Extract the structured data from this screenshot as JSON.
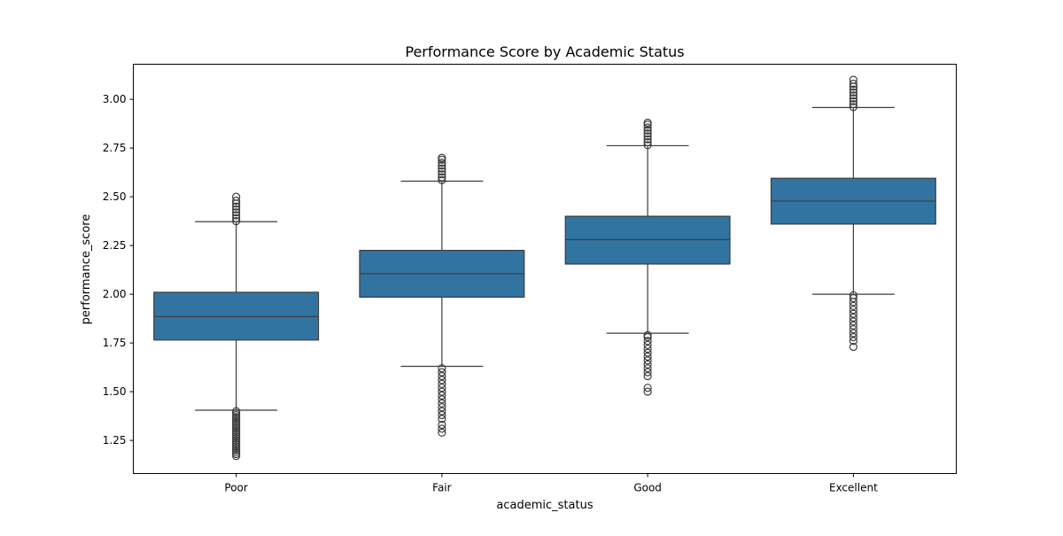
{
  "chart_data": {
    "type": "box",
    "title": "Performance Score by Academic Status",
    "xlabel": "academic_status",
    "ylabel": "performance_score",
    "ylim": [
      1.08,
      3.18
    ],
    "yticks": [
      "1.25",
      "1.50",
      "1.75",
      "2.00",
      "2.25",
      "2.50",
      "2.75",
      "3.00"
    ],
    "grid": false,
    "box_color": "#3274a1",
    "line_color": "#3d3d3d",
    "categories": [
      "Poor",
      "Fair",
      "Good",
      "Excellent"
    ],
    "boxes": [
      {
        "category": "Poor",
        "whisker_low": 1.405,
        "q1": 1.765,
        "median": 1.885,
        "q3": 2.01,
        "whisker_high": 2.372,
        "outliers_low": [
          1.17,
          1.18,
          1.19,
          1.2,
          1.21,
          1.22,
          1.23,
          1.24,
          1.25,
          1.26,
          1.27,
          1.28,
          1.29,
          1.3,
          1.31,
          1.32,
          1.33,
          1.34,
          1.35,
          1.36,
          1.37,
          1.38,
          1.39,
          1.4
        ],
        "outliers_high": [
          2.375,
          2.39,
          2.405,
          2.42,
          2.435,
          2.45,
          2.465,
          2.48,
          2.5
        ]
      },
      {
        "category": "Fair",
        "whisker_low": 1.63,
        "q1": 1.985,
        "median": 2.105,
        "q3": 2.225,
        "whisker_high": 2.58,
        "outliers_low": [
          1.29,
          1.31,
          1.33,
          1.36,
          1.38,
          1.4,
          1.42,
          1.44,
          1.46,
          1.48,
          1.5,
          1.52,
          1.54,
          1.56,
          1.58,
          1.6,
          1.62
        ],
        "outliers_high": [
          2.585,
          2.6,
          2.615,
          2.63,
          2.645,
          2.66,
          2.675,
          2.69,
          2.7
        ]
      },
      {
        "category": "Good",
        "whisker_low": 1.8,
        "q1": 2.155,
        "median": 2.28,
        "q3": 2.4,
        "whisker_high": 2.762,
        "outliers_low": [
          1.5,
          1.52,
          1.58,
          1.6,
          1.62,
          1.64,
          1.66,
          1.68,
          1.7,
          1.72,
          1.74,
          1.76,
          1.78,
          1.79
        ],
        "outliers_high": [
          2.765,
          2.78,
          2.795,
          2.81,
          2.825,
          2.84,
          2.855,
          2.87,
          2.88
        ]
      },
      {
        "category": "Excellent",
        "whisker_low": 2.0,
        "q1": 2.36,
        "median": 2.478,
        "q3": 2.595,
        "whisker_high": 2.958,
        "outliers_low": [
          1.73,
          1.76,
          1.78,
          1.8,
          1.82,
          1.84,
          1.86,
          1.88,
          1.9,
          1.92,
          1.94,
          1.96,
          1.98,
          1.995
        ],
        "outliers_high": [
          2.96,
          2.975,
          2.99,
          3.005,
          3.02,
          3.035,
          3.05,
          3.065,
          3.08,
          3.1
        ]
      }
    ]
  }
}
